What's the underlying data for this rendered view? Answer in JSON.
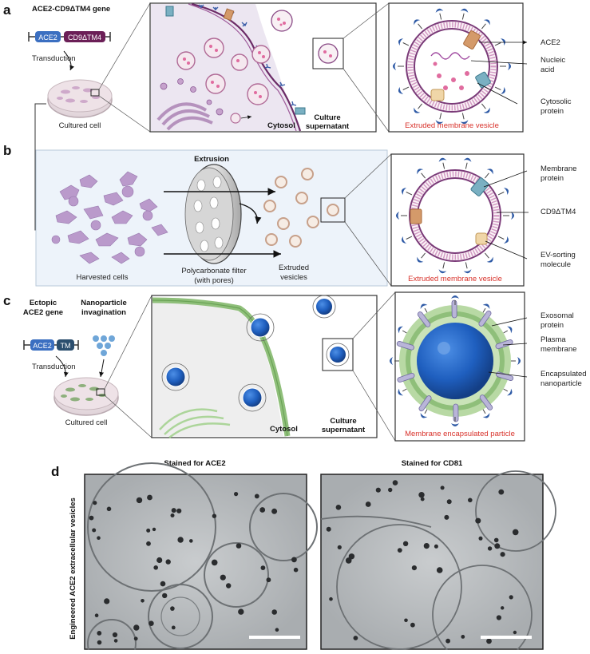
{
  "panels": {
    "a": {
      "letter": "a",
      "gene_title": "ACE2-CD9ΔTM4 gene",
      "gene_box1": "ACE2",
      "gene_box2": "CD9ΔTM4",
      "transduction": "Transduction",
      "cultured_cell": "Cultured cell",
      "cytosol": "Cytosol",
      "culture_supernatant": [
        "Culture",
        "supernatant"
      ],
      "zoom_caption": "Extruded membrane vesicle",
      "callouts": [
        "ACE2",
        "Nucleic acid",
        "Cytosolic protein"
      ]
    },
    "b": {
      "letter": "b",
      "extrusion": "Extrusion",
      "harvested_cells": "Harvested cells",
      "filter_label": [
        "Polycarbonate filter",
        "(with pores)"
      ],
      "extruded_vesicles": [
        "Extruded",
        "vesicles"
      ],
      "zoom_caption": "Extruded membrane vesicle",
      "callouts": [
        "Membrane protein",
        "CD9ΔTM4",
        "EV-sorting molecule"
      ]
    },
    "c": {
      "letter": "c",
      "ectopic_gene": [
        "Ectopic",
        "ACE2 gene"
      ],
      "nanoparticle_invagination": [
        "Nanoparticle",
        "invagination"
      ],
      "gene_box1": "ACE2",
      "gene_box2": "TM",
      "transduction": "Transduction",
      "cultured_cell": "Cultured cell",
      "cytosol": "Cytosol",
      "culture_supernatant": [
        "Culture",
        "supernatant"
      ],
      "zoom_caption": "Membrane encapsulated particle",
      "callouts": [
        "Exosomal protein",
        "Plasma membrane",
        "Encapsulated nanoparticle"
      ]
    },
    "d": {
      "letter": "d",
      "title_left": "Stained for ACE2",
      "title_right": "Stained for CD81",
      "side_label": "Engineered ACE2 extracellular vesicles"
    }
  },
  "colors": {
    "ace2_box": "#3b6fc1",
    "cd9_box": "#6b1f57",
    "membrane_pink": "#c5569b",
    "vesicle_red_caption": "#d8322b",
    "nanoparticle_blue": "#1f5fbf",
    "plasma_green": "#8fbf7a",
    "cytosol_bg": "#ece6f1",
    "panel_b_bg": "#edf3fa"
  }
}
